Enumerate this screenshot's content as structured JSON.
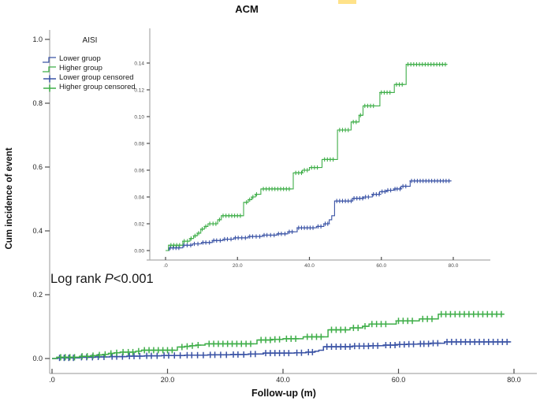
{
  "title": "ACM",
  "annotation": {
    "prefix": "Log rank ",
    "italic_p": "P",
    "suffix": "<0.001"
  },
  "highlight": {
    "color": "#FFE289"
  },
  "legend": {
    "title": "AISI",
    "items": [
      {
        "label": "Lower gruop",
        "color": "#3A53A5",
        "marker": "step"
      },
      {
        "label": "Higher group",
        "color": "#3FAE49",
        "marker": "step"
      },
      {
        "label": "Lower group censored",
        "color": "#3A53A5",
        "marker": "plus"
      },
      {
        "label": "Higher group censored",
        "color": "#3FAE49",
        "marker": "plus"
      }
    ]
  },
  "main_plot": {
    "x_label": "Follow-up (m)",
    "y_label": "Cum incidence of event",
    "x_ticks": [
      {
        "label": ".0",
        "value": 0
      },
      {
        "label": "20.0",
        "value": 20
      },
      {
        "label": "40.0",
        "value": 40
      },
      {
        "label": "60.0",
        "value": 60
      },
      {
        "label": "80.0",
        "value": 80
      }
    ],
    "y_ticks": [
      {
        "label": "0.0",
        "value": 0.0
      },
      {
        "label": "0.2",
        "value": 0.2
      },
      {
        "label": "0.4",
        "value": 0.4
      },
      {
        "label": "0.6",
        "value": 0.6
      },
      {
        "label": "0.8",
        "value": 0.8
      },
      {
        "label": "1.0",
        "value": 1.0
      }
    ]
  },
  "inset_plot": {
    "x_ticks": [
      {
        "label": ".0",
        "value": 0
      },
      {
        "label": "20.0",
        "value": 20
      },
      {
        "label": "40.0",
        "value": 40
      },
      {
        "label": "60.0",
        "value": 60
      },
      {
        "label": "80.0",
        "value": 80
      }
    ],
    "y_ticks": [
      {
        "label": "0.00",
        "value": 0.0
      },
      {
        "label": "0.02",
        "value": 0.02
      },
      {
        "label": "0.04",
        "value": 0.04
      },
      {
        "label": "0.06",
        "value": 0.06
      },
      {
        "label": "0.08",
        "value": 0.08
      },
      {
        "label": "0.10",
        "value": 0.1
      },
      {
        "label": "0.12",
        "value": 0.12
      },
      {
        "label": "0.14",
        "value": 0.14
      }
    ]
  },
  "chart_data": {
    "type": "line",
    "subtype": "cumulative-incidence-step",
    "title": "ACM",
    "xlabel": "Follow-up (m)",
    "ylabel": "Cum incidence of event",
    "xlim": [
      0,
      80
    ],
    "main_ylim": [
      0,
      1.0
    ],
    "inset_ylim": [
      0,
      0.14
    ],
    "legend_position": "upper-left",
    "series": [
      {
        "name": "Lower gruop",
        "color": "#3A53A5",
        "end_x": 79.5,
        "steps": [
          [
            1.0,
            0.002
          ],
          [
            4.8,
            0.004
          ],
          [
            7.5,
            0.005
          ],
          [
            10,
            0.006
          ],
          [
            13,
            0.0075
          ],
          [
            16,
            0.0085
          ],
          [
            19,
            0.0095
          ],
          [
            23,
            0.0105
          ],
          [
            27,
            0.0115
          ],
          [
            31,
            0.0125
          ],
          [
            34,
            0.014
          ],
          [
            36.6,
            0.017
          ],
          [
            42,
            0.018
          ],
          [
            44,
            0.02
          ],
          [
            45.5,
            0.023
          ],
          [
            46.2,
            0.026
          ],
          [
            47,
            0.037
          ],
          [
            52,
            0.039
          ],
          [
            55,
            0.04
          ],
          [
            57.5,
            0.042
          ],
          [
            59.5,
            0.044
          ],
          [
            61.5,
            0.045
          ],
          [
            63.5,
            0.046
          ],
          [
            65.5,
            0.048
          ],
          [
            68,
            0.052
          ]
        ],
        "censors": [
          1.3,
          2.1,
          2.9,
          3.7,
          5.1,
          6,
          7,
          8,
          9,
          10.4,
          11.2,
          12.2,
          13.4,
          14.2,
          15.2,
          16.4,
          17.2,
          18.2,
          19.4,
          20.2,
          21.2,
          22.2,
          23.4,
          24.2,
          25.2,
          26.2,
          27.4,
          28.2,
          29.2,
          30.2,
          31.4,
          32.2,
          33.2,
          34.4,
          35.2,
          37,
          37.8,
          38.6,
          39.4,
          40.2,
          41,
          42.4,
          43.2,
          44.4,
          45.1,
          47.6,
          48.4,
          49.2,
          50,
          50.8,
          51.6,
          52.4,
          53.2,
          54,
          54.8,
          55.6,
          56.4,
          57.8,
          58.6,
          59.4,
          60.2,
          61,
          61.8,
          62.6,
          63.8,
          64.4,
          65.2,
          66,
          66.8,
          68.4,
          69.2,
          70,
          70.8,
          71.6,
          72.4,
          73.2,
          74,
          74.8,
          75.6,
          76.4,
          77.2,
          78,
          78.8
        ]
      },
      {
        "name": "Higher group",
        "color": "#3FAE49",
        "end_x": 78.2,
        "steps": [
          [
            0.8,
            0.004
          ],
          [
            4.8,
            0.007
          ],
          [
            6.8,
            0.009
          ],
          [
            7.8,
            0.011
          ],
          [
            8.8,
            0.013
          ],
          [
            9.8,
            0.016
          ],
          [
            10.8,
            0.018
          ],
          [
            11.8,
            0.02
          ],
          [
            14.5,
            0.023
          ],
          [
            15.5,
            0.026
          ],
          [
            21.7,
            0.036
          ],
          [
            23,
            0.038
          ],
          [
            24,
            0.04
          ],
          [
            25,
            0.042
          ],
          [
            26.5,
            0.046
          ],
          [
            35.5,
            0.058
          ],
          [
            38,
            0.06
          ],
          [
            40,
            0.062
          ],
          [
            43.5,
            0.068
          ],
          [
            47.8,
            0.09
          ],
          [
            51.6,
            0.096
          ],
          [
            53.8,
            0.101
          ],
          [
            54.9,
            0.108
          ],
          [
            59.6,
            0.118
          ],
          [
            63.6,
            0.124
          ],
          [
            66.9,
            0.139
          ]
        ],
        "censors": [
          1.5,
          2.3,
          3.1,
          3.9,
          5.2,
          6.1,
          7.1,
          8.2,
          9.2,
          10.2,
          11.2,
          12.3,
          13.2,
          14,
          15,
          16,
          16.8,
          17.6,
          18.4,
          19.2,
          20,
          20.8,
          22.5,
          23.4,
          24.3,
          25.3,
          27.2,
          28,
          28.8,
          29.6,
          30.4,
          31.2,
          32,
          32.8,
          33.6,
          34.4,
          36.2,
          37,
          37.8,
          38.6,
          39.4,
          40.6,
          41.4,
          42.2,
          44.2,
          45,
          45.8,
          46.6,
          48.4,
          49.2,
          50,
          50.8,
          52.2,
          53,
          54.2,
          55.4,
          56.2,
          57,
          57.8,
          60,
          60.8,
          61.6,
          62.4,
          64.2,
          65,
          65.8,
          67.4,
          68.2,
          69,
          69.8,
          70.6,
          71.4,
          72.2,
          73,
          73.8,
          74.6,
          75.4,
          76.2,
          77,
          77.8
        ]
      }
    ]
  }
}
